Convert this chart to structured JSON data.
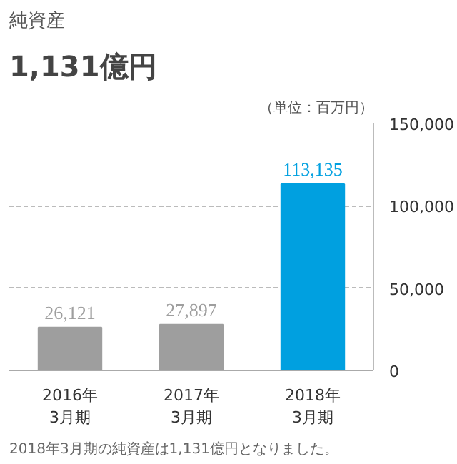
{
  "chart_data": {
    "type": "bar",
    "title": "純資産",
    "subtitle": "1,131億円",
    "categories": [
      "2016年\n3月期",
      "2017年\n3月期",
      "2018年\n3月期"
    ],
    "values": [
      26121,
      27897,
      113135
    ],
    "colors": [
      "#9e9e9e",
      "#9e9e9e",
      "#00a0e0"
    ],
    "value_labels": [
      "26,121",
      "27,897",
      "113,135"
    ],
    "ylim": [
      0,
      150000
    ],
    "yticks": [
      0,
      {
        "value": 50000,
        "label": "50,000"
      },
      {
        "value": 100000,
        "label": "100,000"
      },
      {
        "value": 150000,
        "label": "150,000"
      }
    ],
    "grid": "y",
    "annotations": [
      "（単位：百万円）",
      "2018年3月期の純資産は1,131億円となりました。"
    ]
  }
}
